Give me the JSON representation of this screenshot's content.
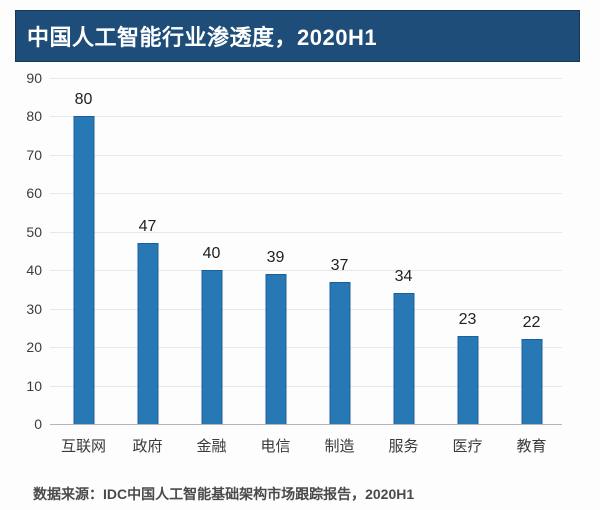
{
  "title": "中国人工智能行业渗透度，2020H1",
  "source_note": "数据来源：IDC中国人工智能基础架构市场跟踪报告，2020H1",
  "colors": {
    "background": "#fdfdfd",
    "banner_bg": "#1d4d78",
    "banner_border": "#16395a",
    "banner_text": "#ffffff",
    "bar_fill": "#2878b5",
    "bar_border": "#1c6096",
    "gridline": "#e8e8e8",
    "axis_line": "#b5b5b5",
    "tick_text": "#3c3c3c",
    "label_text": "#3a3a3a",
    "value_text": "#1f1f1f",
    "source_text": "#4a4a4a"
  },
  "chart_data": {
    "type": "bar",
    "title": "中国人工智能行业渗透度，2020H1",
    "categories": [
      "互联网",
      "政府",
      "金融",
      "电信",
      "制造",
      "服务",
      "医疗",
      "教育"
    ],
    "values": [
      80,
      47,
      40,
      39,
      37,
      34,
      23,
      22
    ],
    "xlabel": "",
    "ylabel": "",
    "ylim": [
      0,
      90
    ],
    "ytick_step": 10,
    "grid": true,
    "legend": false
  }
}
